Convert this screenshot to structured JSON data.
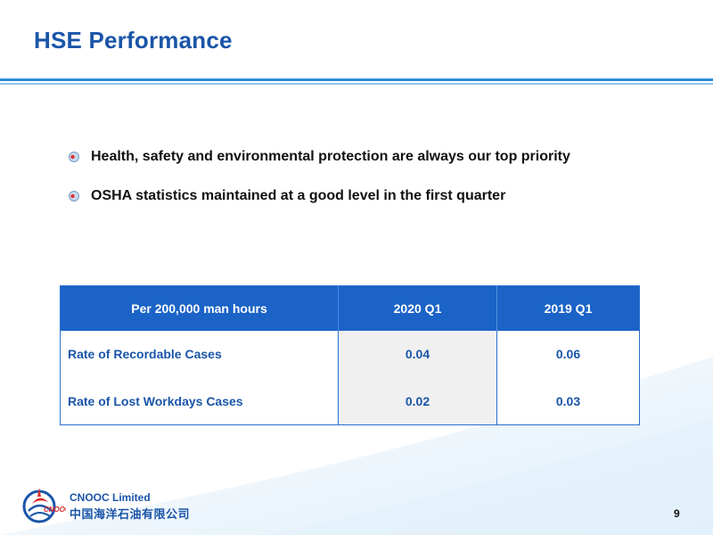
{
  "slide": {
    "title": "HSE Performance",
    "page_number": "9"
  },
  "bullets": [
    "Health, safety and environmental protection are always our top priority",
    "OSHA statistics maintained at a good level in the first quarter"
  ],
  "table": {
    "headers": [
      "Per 200,000 man hours",
      "2020 Q1",
      "2019 Q1"
    ],
    "rows": [
      {
        "label": "Rate of Recordable Cases",
        "q1_2020": "0.04",
        "q1_2019": "0.06"
      },
      {
        "label": "Rate of Lost Workdays Cases",
        "q1_2020": "0.02",
        "q1_2019": "0.03"
      }
    ]
  },
  "footer": {
    "company_en": "CNOOC Limited",
    "company_cn": "中国海洋石油有限公司",
    "logo_text": "CNOOC"
  },
  "colors": {
    "brand_blue": "#1a55a8",
    "header_blue": "#1b63c7",
    "rule_blue": "#2a8fd8",
    "logo_red": "#d92b2b"
  }
}
